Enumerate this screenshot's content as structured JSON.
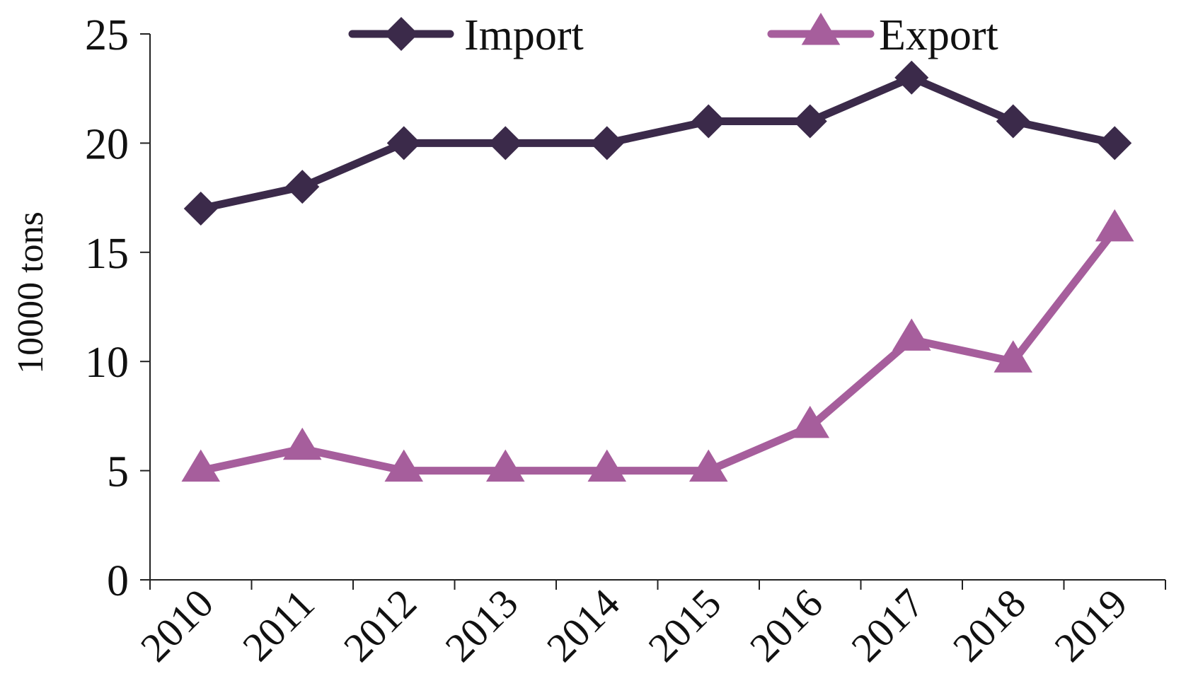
{
  "chart_data": {
    "type": "line",
    "title": "",
    "xlabel": "",
    "ylabel": "10000 tons",
    "categories": [
      "2010",
      "2011",
      "2012",
      "2013",
      "2014",
      "2015",
      "2016",
      "2017",
      "2018",
      "2019"
    ],
    "series": [
      {
        "name": "Import",
        "values": [
          17,
          18,
          20,
          20,
          20,
          21,
          21,
          23,
          21,
          20
        ],
        "color": "#3b2a4a",
        "marker": "diamond"
      },
      {
        "name": "Export",
        "values": [
          5,
          6,
          5,
          5,
          5,
          5,
          7,
          11,
          10,
          16
        ],
        "color": "#a65e9c",
        "marker": "triangle"
      }
    ],
    "ylim": [
      0,
      25
    ],
    "yticks": [
      "0",
      "5",
      "10",
      "15",
      "20",
      "25"
    ],
    "grid": false,
    "legend_position": "top"
  }
}
